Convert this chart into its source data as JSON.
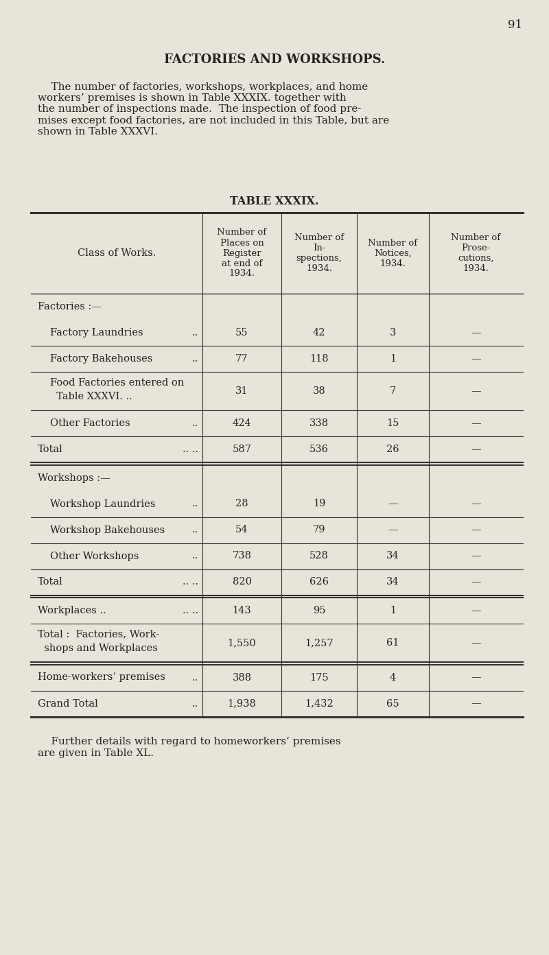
{
  "page_number": "91",
  "title": "FACTORIES AND WORKSHOPS.",
  "intro_text": "    The number of factories, workshops, workplaces, and home\nworkers’ premises is shown in Table XXXIX. together with\nthe number of inspections made.  The inspection of food pre-\nmises except food factories, are not included in this Table, but are\nshown in Table XXXVI.",
  "table_title": "TABLE XXXIX.",
  "col_headers": [
    "Class of Works.",
    "Number of\nPlaces on\nRegister\nat end of\n1934.",
    "Number of\nIn-\nspections,\n1934.",
    "Number of\nNotices,\n1934.",
    "Number of\nProse-\ncutions,\n1934."
  ],
  "rows": [
    {
      "label": "Factories :—",
      "label2": "",
      "dots": "",
      "indent": false,
      "is_section": true,
      "is_total": false,
      "is_grand_total": false,
      "values": [
        "",
        "",
        "",
        ""
      ],
      "line_after": "none"
    },
    {
      "label": "Factory Laundries",
      "label2": "",
      "dots": "..",
      "indent": true,
      "is_section": false,
      "is_total": false,
      "is_grand_total": false,
      "values": [
        "55",
        "42",
        "3",
        "—"
      ],
      "line_after": "single"
    },
    {
      "label": "Factory Bakehouses",
      "label2": "",
      "dots": "..",
      "indent": true,
      "is_section": false,
      "is_total": false,
      "is_grand_total": false,
      "values": [
        "77",
        "118",
        "1",
        "—"
      ],
      "line_after": "single"
    },
    {
      "label": "Food Factories entered on",
      "label2": "  Table XXXVI. ..",
      "dots": "..",
      "indent": true,
      "is_section": false,
      "is_total": false,
      "is_grand_total": false,
      "values": [
        "31",
        "38",
        "7",
        "—"
      ],
      "line_after": "single"
    },
    {
      "label": "Other Factories",
      "label2": "",
      "dots": "..",
      "indent": true,
      "is_section": false,
      "is_total": false,
      "is_grand_total": false,
      "values": [
        "424",
        "338",
        "15",
        "—"
      ],
      "line_after": "single"
    },
    {
      "label": "Total",
      "label2": "",
      "dots": ".. ..",
      "indent": false,
      "is_section": false,
      "is_total": true,
      "is_grand_total": false,
      "values": [
        "587",
        "536",
        "26",
        "—"
      ],
      "line_after": "double"
    },
    {
      "label": "Workshops :—",
      "label2": "",
      "dots": "",
      "indent": false,
      "is_section": true,
      "is_total": false,
      "is_grand_total": false,
      "values": [
        "",
        "",
        "",
        ""
      ],
      "line_after": "none"
    },
    {
      "label": "Workshop Laundries",
      "label2": "",
      "dots": "..",
      "indent": true,
      "is_section": false,
      "is_total": false,
      "is_grand_total": false,
      "values": [
        "28",
        "19",
        "—",
        "—"
      ],
      "line_after": "single"
    },
    {
      "label": "Workshop Bakehouses",
      "label2": "",
      "dots": "..",
      "indent": true,
      "is_section": false,
      "is_total": false,
      "is_grand_total": false,
      "values": [
        "54",
        "79",
        "—",
        "—"
      ],
      "line_after": "single"
    },
    {
      "label": "Other Workshops",
      "label2": "",
      "dots": "..",
      "indent": true,
      "is_section": false,
      "is_total": false,
      "is_grand_total": false,
      "values": [
        "738",
        "528",
        "34",
        "—"
      ],
      "line_after": "single"
    },
    {
      "label": "Total",
      "label2": "",
      "dots": ".. ..",
      "indent": false,
      "is_section": false,
      "is_total": true,
      "is_grand_total": false,
      "values": [
        "820",
        "626",
        "34",
        "—"
      ],
      "line_after": "double"
    },
    {
      "label": "Workplaces ..",
      "label2": "",
      "dots": ".. ..",
      "indent": false,
      "is_section": false,
      "is_total": false,
      "is_grand_total": false,
      "values": [
        "143",
        "95",
        "1",
        "—"
      ],
      "line_after": "single"
    },
    {
      "label": "Total :  Factories, Work-",
      "label2": "  shops and Workplaces",
      "dots": "",
      "indent": false,
      "is_section": false,
      "is_total": true,
      "is_grand_total": false,
      "values": [
        "1,550",
        "1,257",
        "61",
        "—"
      ],
      "line_after": "double"
    },
    {
      "label": "Home-workers’ premises",
      "label2": "",
      "dots": "..",
      "indent": false,
      "is_section": false,
      "is_total": false,
      "is_grand_total": false,
      "values": [
        "388",
        "175",
        "4",
        "—"
      ],
      "line_after": "single"
    },
    {
      "label": "Grand Total",
      "label2": "",
      "dots": "..",
      "indent": false,
      "is_section": false,
      "is_total": false,
      "is_grand_total": true,
      "values": [
        "1,938",
        "1,432",
        "65",
        "—"
      ],
      "line_after": "thick"
    }
  ],
  "footer_text": "    Further details with regard to homeworkers’ premises\nare given in Table XL.",
  "bg_color": "#e8e4d9",
  "text_color": "#222222",
  "line_color": "#333333"
}
